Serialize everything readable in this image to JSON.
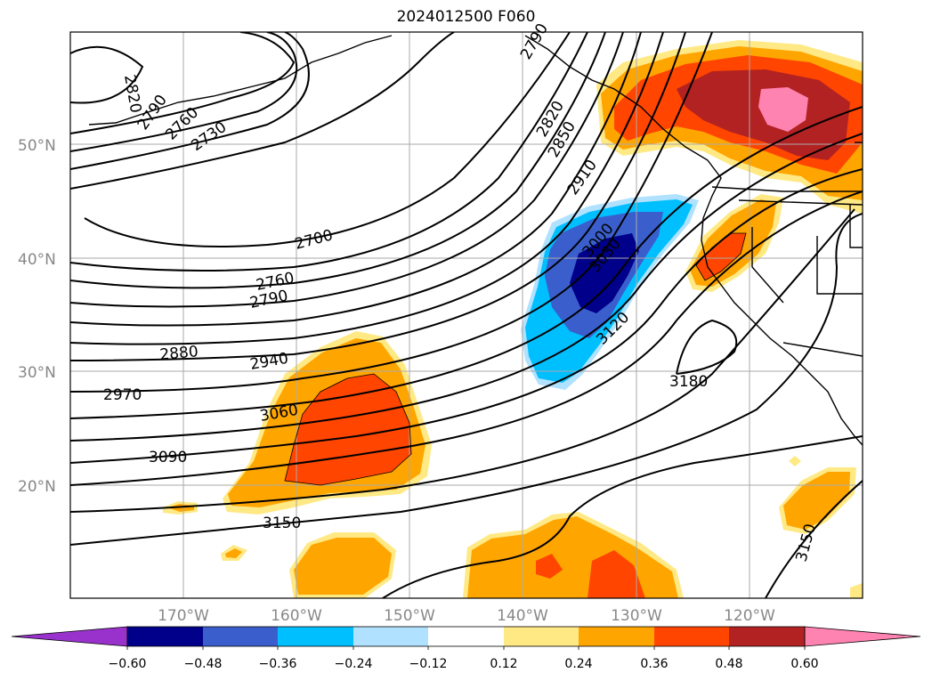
{
  "title": "2024012500 F060",
  "map": {
    "lat_labels": [
      "50°N",
      "40°N",
      "30°N",
      "20°N"
    ],
    "lon_labels": [
      "170°W",
      "160°W",
      "150°W",
      "140°W",
      "130°W",
      "120°W"
    ],
    "contour_labels": [
      "2820",
      "2790",
      "2760",
      "2730",
      "2700",
      "2760",
      "2790",
      "2880",
      "2940",
      "2970",
      "3060",
      "3090",
      "3150",
      "3180",
      "2820",
      "2850",
      "2910",
      "3000",
      "3030",
      "3120",
      "3150",
      "2790"
    ]
  },
  "colorbar": {
    "ticks": [
      "−0.60",
      "−0.48",
      "−0.36",
      "−0.24",
      "−0.12",
      "0.12",
      "0.24",
      "0.36",
      "0.48",
      "0.60"
    ],
    "colors": [
      "#9932cc",
      "#00008b",
      "#3a5fcd",
      "#00bfff",
      "#b0e2ff",
      "#ffffff",
      "#ffe985",
      "#ffa500",
      "#ff4500",
      "#b22222",
      "#ff83b1"
    ]
  }
}
